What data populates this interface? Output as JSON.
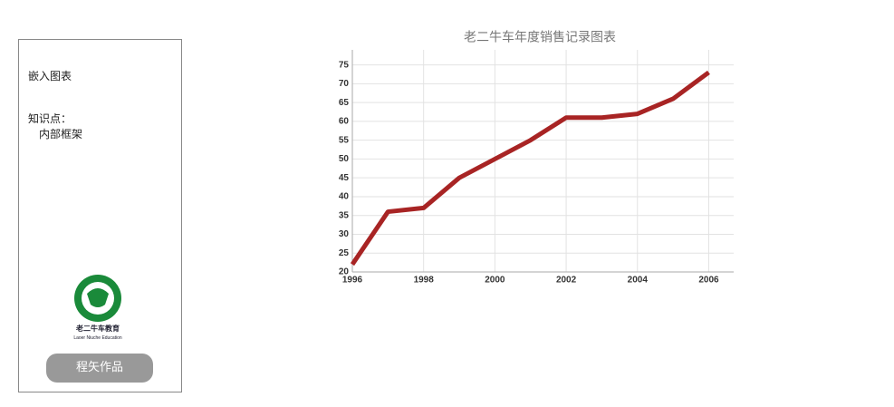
{
  "sidebar": {
    "heading": "嵌入图表",
    "knowledge_label": "知识点：",
    "knowledge_item": "内部框架",
    "logo_text": "老二牛车教育",
    "logo_subtext": "Laoer Niuche Education",
    "button": "程矢作品"
  },
  "chart_data": {
    "type": "line",
    "title": "老二牛车年度销售记录图表",
    "x": [
      1996,
      1997,
      1998,
      1999,
      2000,
      2001,
      2002,
      2003,
      2004,
      2005,
      2006
    ],
    "values": [
      22,
      36,
      37,
      45,
      50,
      55,
      61,
      61,
      62,
      66,
      73
    ],
    "color": "#a82424",
    "xlim": [
      1996,
      2006.7
    ],
    "xticks": [
      1996,
      1998,
      2000,
      2002,
      2004,
      2006
    ],
    "ylim": [
      20,
      79
    ],
    "yticks": [
      20,
      25,
      30,
      35,
      40,
      45,
      50,
      55,
      60,
      65,
      70,
      75
    ],
    "grid": true
  }
}
